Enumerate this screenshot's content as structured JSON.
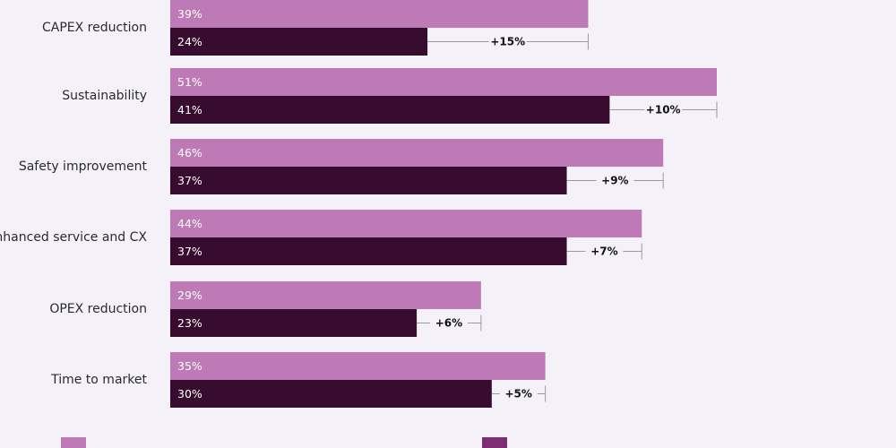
{
  "chart_data": {
    "type": "bar",
    "orientation": "horizontal",
    "categories": [
      "CAPEX reduction",
      "Sustainability",
      "Safety improvement",
      "Enhanced service and CX",
      "OPEX reduction",
      "Time to market"
    ],
    "series": [
      {
        "values": [
          39,
          51,
          46,
          44,
          29,
          35
        ],
        "value_labels": [
          "39%",
          "51%",
          "46%",
          "44%",
          "29%",
          "35%"
        ],
        "color": "#be7ab6"
      },
      {
        "values": [
          24,
          41,
          37,
          37,
          23,
          30
        ],
        "value_labels": [
          "24%",
          "41%",
          "37%",
          "37%",
          "23%",
          "30%"
        ],
        "color": "#380c2e"
      }
    ],
    "differences": [
      "+15%",
      "+10%",
      "+9%",
      "+7%",
      "+6%",
      "+5%"
    ],
    "xlim": [
      0,
      70
    ],
    "legend": [
      {
        "text": "",
        "color": "#be7ab6"
      },
      {
        "text": "",
        "color": "#7f2e73"
      }
    ]
  }
}
